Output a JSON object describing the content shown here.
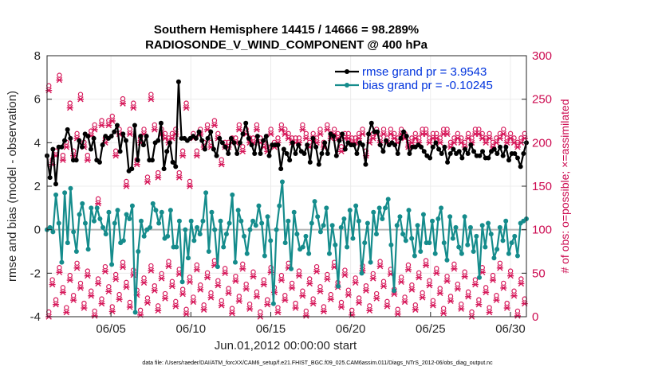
{
  "chart_data": {
    "type": "line",
    "title_line1": "Southern Hemisphere 14415 / 14666 = 98.289%",
    "title_line2": "RADIOSONDE_V_WIND_COMPONENT @ 400 hPa",
    "xlabel": "Jun.01,2012 00:00:00 start",
    "ylabel_left": "rmse and bias (model - observation)",
    "ylabel_right": "# of obs: o=possible; ×=assimilated",
    "footnote": "data file: /Users/raeder/DAI/ATM_forcXX/CAM6_setup/f.e21.FHIST_BGC.f09_025.CAM6assim.011/Diags_NTrS_2012-06/obs_diag_output.nc",
    "x_tick_labels": [
      "06/05",
      "06/10",
      "06/15",
      "06/20",
      "06/25",
      "06/30"
    ],
    "x_tick_days": [
      5,
      10,
      15,
      20,
      25,
      30
    ],
    "xlim_days": [
      1,
      31
    ],
    "ylim_left": [
      -4,
      8
    ],
    "y_ticks_left": [
      -4,
      -2,
      0,
      2,
      4,
      6,
      8
    ],
    "ylim_right": [
      0,
      300
    ],
    "y_ticks_right": [
      0,
      50,
      100,
      150,
      200,
      250,
      300
    ],
    "colors": {
      "rmse": "#000000",
      "bias": "#158c8c",
      "obs": "#d6185a",
      "zero_line": "#b4b4b4",
      "legend_text": "#0033dd"
    },
    "series": [
      {
        "name": "rmse grand pr = 3.9543",
        "values": [
          3.4,
          2.4,
          3.7,
          2.1,
          3.8,
          3.8,
          4.1,
          4.6,
          4.2,
          3.2,
          3.2,
          4.1,
          3.8,
          4.4,
          4.3,
          3.7,
          4.2,
          3.2,
          3.1,
          3.9,
          4.3,
          4.2,
          4.3,
          4.5,
          4.8,
          3.6,
          4.4,
          4.1,
          2.7,
          2.8,
          4.8,
          3.2,
          4.3,
          3.9,
          4.3,
          3.2,
          3.2,
          4.0,
          4.1,
          4.9,
          2.8,
          3.6,
          4.0,
          3.1,
          2.9,
          6.8,
          4.2,
          4.2,
          4.1,
          4.2,
          4.3,
          4.2,
          4.5,
          4.1,
          3.7,
          4.2,
          4.5,
          3.7,
          3.4,
          4.2,
          4.0,
          3.8,
          3.5,
          4.2,
          4.0,
          3.5,
          4.0,
          4.4,
          4.9,
          4.2,
          3.9,
          3.5,
          4.3,
          3.5,
          4.1,
          4.3,
          3.4,
          3.9,
          3.9,
          3.9,
          2.8,
          3.7,
          3.5,
          3.2,
          4.0,
          3.5,
          3.9,
          3.6,
          3.5,
          3.9,
          3.1,
          4.2,
          3.8,
          3.0,
          3.5,
          4.0,
          3.5,
          4.4,
          4.3,
          3.4,
          4.1,
          4.4,
          3.7,
          4.0,
          3.9,
          3.9,
          3.5,
          4.0,
          3.9,
          3.0,
          4.4,
          4.9,
          4.5,
          4.5,
          3.9,
          3.6,
          4.1,
          3.9,
          4.0,
          3.9,
          3.5,
          4.2,
          4.5,
          4.3,
          3.5,
          3.8,
          3.8,
          3.9,
          3.8,
          3.6,
          3.4,
          3.3,
          3.8,
          4.0,
          3.7,
          3.5,
          3.8,
          3.1,
          3.5,
          3.7,
          3.5,
          3.6,
          3.3,
          3.7,
          3.5,
          3.9,
          3.6,
          3.4,
          3.4,
          3.6,
          3.3,
          3.3,
          3.6,
          3.7,
          3.5,
          3.8,
          3.4,
          3.8,
          3.2,
          3.5,
          3.5,
          3.3,
          2.9,
          3.5,
          4.0
        ],
        "values_note": "approximate 4-hourly-ish samples read from the plot"
      },
      {
        "name": "bias grand pr = -0.10245",
        "values": [
          0.0,
          0.1,
          -0.1,
          1.6,
          0.3,
          -1.5,
          1.7,
          -0.6,
          1.9,
          -0.1,
          -1.0,
          0.7,
          1.2,
          0.3,
          -0.9,
          1.0,
          0.4,
          1.0,
          0.5,
          0.1,
          -0.2,
          0.8,
          -1.6,
          0.3,
          0.9,
          -0.6,
          -0.5,
          0.7,
          0.5,
          1.1,
          -3.8,
          -1.0,
          0.4,
          -0.3,
          0.0,
          0.1,
          1.2,
          0.9,
          0.3,
          0.8,
          -0.4,
          -0.3,
          0.9,
          -0.8,
          -0.8,
          0.4,
          -2.4,
          0.0,
          -1.3,
          0.4,
          -0.5,
          0.1,
          -0.2,
          0.4,
          1.7,
          -1.0,
          0.8,
          0.0,
          -1.7,
          0.4,
          -0.8,
          -0.2,
          0.3,
          1.6,
          -1.5,
          0.9,
          0.4,
          -0.3,
          -1.1,
          0.0,
          0.4,
          0.2,
          1.1,
          0.3,
          -1.2,
          0.6,
          -0.5,
          -3.4,
          0.0,
          1.1,
          2.2,
          -0.6,
          0.4,
          -1.8,
          0.8,
          -0.2,
          -0.9,
          -0.8,
          -0.3,
          -1.1,
          0.3,
          1.3,
          0.6,
          -0.1,
          0.2,
          1.0,
          -1.1,
          0.2,
          -0.7,
          -2.6,
          0.1,
          0.5,
          -0.8,
          0.9,
          -0.4,
          1.1,
          0.4,
          -2.0,
          -0.6,
          0.3,
          -1.5,
          0.8,
          -0.2,
          1.0,
          0.5,
          1.0,
          1.4,
          -0.7,
          -2.8,
          0.2,
          0.6,
          -0.2,
          -0.5,
          0.9,
          -0.4,
          -1.2,
          0.2,
          -1.0,
          0.7,
          -0.6,
          -0.6,
          0.4,
          -1.1,
          0.5,
          1.0,
          -0.6,
          -1.4,
          0.6,
          -0.4,
          0.1,
          -0.8,
          -1.1,
          0.6,
          -0.7,
          0.1,
          -1.0,
          -0.3,
          -2.2,
          0.2,
          -0.8,
          0.3,
          -0.2,
          -1.3,
          -0.9,
          0.1,
          -0.5,
          0.4,
          -1.1,
          -0.6,
          -0.3,
          -1.2,
          0.3,
          0.4,
          0.5
        ],
        "values_note": "approximate"
      }
    ],
    "obs_possible": [
      260,
      175,
      185,
      272,
      180,
      195,
      240,
      185,
      205,
      250,
      195,
      180,
      208,
      215,
      130,
      220,
      200,
      220,
      225,
      185,
      210,
      245,
      150,
      210,
      240,
      175,
      200,
      210,
      155,
      250,
      215,
      160,
      210,
      205,
      200,
      205,
      210,
      160,
      185,
      240,
      150,
      205,
      185,
      210,
      195,
      215,
      195,
      220,
      205,
      175,
      195,
      195,
      200,
      200,
      215,
      190,
      210,
      200,
      200,
      215,
      200,
      195,
      190,
      210,
      195,
      200,
      215,
      210,
      205,
      200,
      200,
      200,
      215,
      205,
      195,
      205,
      200,
      210,
      195,
      215,
      205,
      210,
      205,
      190,
      205,
      205,
      200,
      200,
      205,
      210,
      185,
      200,
      205,
      210,
      200,
      210,
      200,
      210,
      205,
      200,
      210,
      205,
      195,
      200,
      205,
      200,
      210,
      210,
      200,
      205,
      205,
      200,
      210,
      210,
      195,
      200,
      205,
      200,
      195,
      205,
      200,
      210,
      210,
      205,
      200,
      205,
      195,
      200,
      205,
      210,
      200,
      205,
      200,
      195,
      200,
      205
    ],
    "obs_note": "Obs counts: upper cluster ~160-280 and lower cluster ~0-60; drawn in pink on right axis"
  }
}
